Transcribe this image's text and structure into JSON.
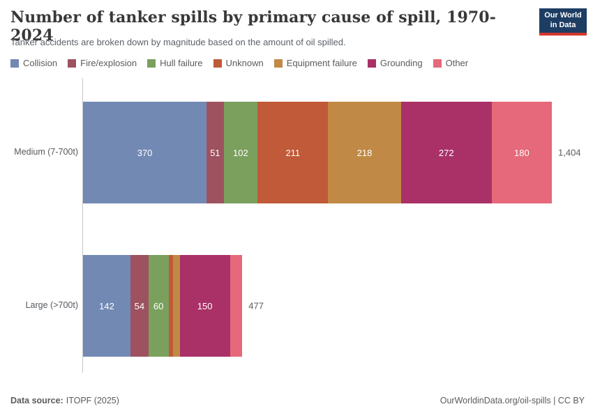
{
  "header": {
    "title": "Number of tanker spills by primary cause of spill, 1970-2024",
    "subtitle": "Tanker accidents are broken down by magnitude based on the amount of oil spilled.",
    "logo": {
      "line1": "Our World",
      "line2": "in Data"
    }
  },
  "brand_colors": {
    "logo_navy": "#1d3d63",
    "logo_red": "#d4382d"
  },
  "chart_data": {
    "type": "bar",
    "stacked": true,
    "orientation": "horizontal",
    "title": "Number of tanker spills by primary cause of spill, 1970-2024",
    "xlabel": "",
    "ylabel": "",
    "xlim": [
      0,
      1404
    ],
    "grid": false,
    "legend_position": "top",
    "categories": [
      "Medium (7-700t)",
      "Large (>700t)"
    ],
    "series": [
      {
        "name": "Collision",
        "color": "#7289b4",
        "values": [
          370,
          142
        ]
      },
      {
        "name": "Fire/explosion",
        "color": "#9e5260",
        "values": [
          51,
          54
        ]
      },
      {
        "name": "Hull failure",
        "color": "#7ba05e",
        "values": [
          102,
          60
        ]
      },
      {
        "name": "Unknown",
        "color": "#c05a38",
        "values": [
          211,
          14
        ]
      },
      {
        "name": "Equipment failure",
        "color": "#c08a46",
        "values": [
          218,
          20
        ]
      },
      {
        "name": "Grounding",
        "color": "#a93167",
        "values": [
          272,
          150
        ]
      },
      {
        "name": "Other",
        "color": "#e5697a",
        "values": [
          180,
          37
        ]
      }
    ],
    "totals": [
      1404,
      477
    ],
    "totals_display": [
      "1,404",
      "477"
    ]
  },
  "footer": {
    "source_label": "Data source:",
    "source_value": "ITOPF (2025)",
    "link": "OurWorldinData.org/oil-spills | CC BY"
  }
}
